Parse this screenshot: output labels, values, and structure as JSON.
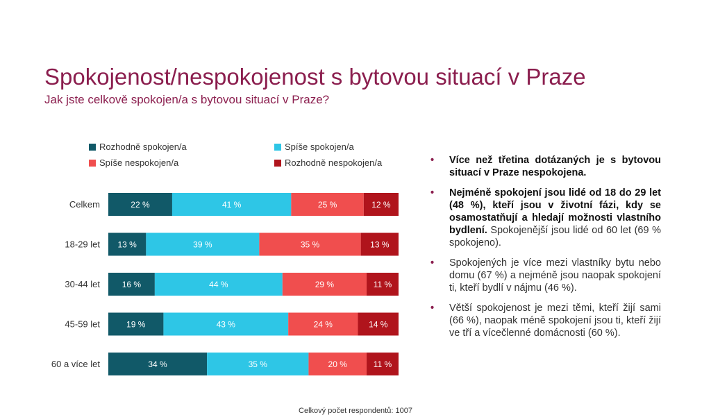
{
  "title": "Spokojenost/nespokojenost s bytovou situací v Praze",
  "subtitle": "Jak jste celkově spokojen/a s bytovou situací v Praze?",
  "colors": {
    "title": "#8b1e4e",
    "series": [
      "#115968",
      "#2ec6e6",
      "#f04e4e",
      "#b0141c"
    ]
  },
  "chart_data": {
    "type": "bar",
    "orientation": "horizontal",
    "stacked": true,
    "categories": [
      "Celkem",
      "18-29 let",
      "30-44 let",
      "45-59 let",
      "60 a více let"
    ],
    "series": [
      {
        "name": "Rozhodně spokojen/a",
        "values": [
          22,
          13,
          16,
          19,
          34
        ]
      },
      {
        "name": "Spíše spokojen/a",
        "values": [
          41,
          39,
          44,
          43,
          35
        ]
      },
      {
        "name": "Spíše nespokojen/a",
        "values": [
          25,
          35,
          29,
          24,
          20
        ]
      },
      {
        "name": "Rozhodně nespokojen/a",
        "values": [
          12,
          13,
          11,
          14,
          11
        ]
      }
    ],
    "value_suffix": " %",
    "xlim": [
      0,
      100
    ],
    "legend_position": "top",
    "grid": false
  },
  "bullets": [
    {
      "bold": "Více než třetina dotázaných je s bytovou situací v Praze nespokojena.",
      "rest": ""
    },
    {
      "bold": "Nejméně spokojení jsou lidé od 18 do 29 let (48 %), kteří jsou v životní fázi, kdy se osamostatňují a hledají možnosti vlastního bydlení.",
      "rest": " Spokojenější jsou lidé od 60 let (69 % spokojeno)."
    },
    {
      "bold": "",
      "rest": "Spokojených je více mezi vlastníky bytu nebo domu (67 %) a nejméně jsou naopak spokojení ti, kteří bydlí v nájmu (46 %)."
    },
    {
      "bold": "",
      "rest": "Větší spokojenost je mezi těmi, kteří žijí sami (66 %), naopak méně spokojení jsou ti, kteří žijí ve tří a vícečlenné domácnosti (60 %)."
    }
  ],
  "bullet_marker": "•",
  "footnote": "Celkový počet respondentů: 1007"
}
